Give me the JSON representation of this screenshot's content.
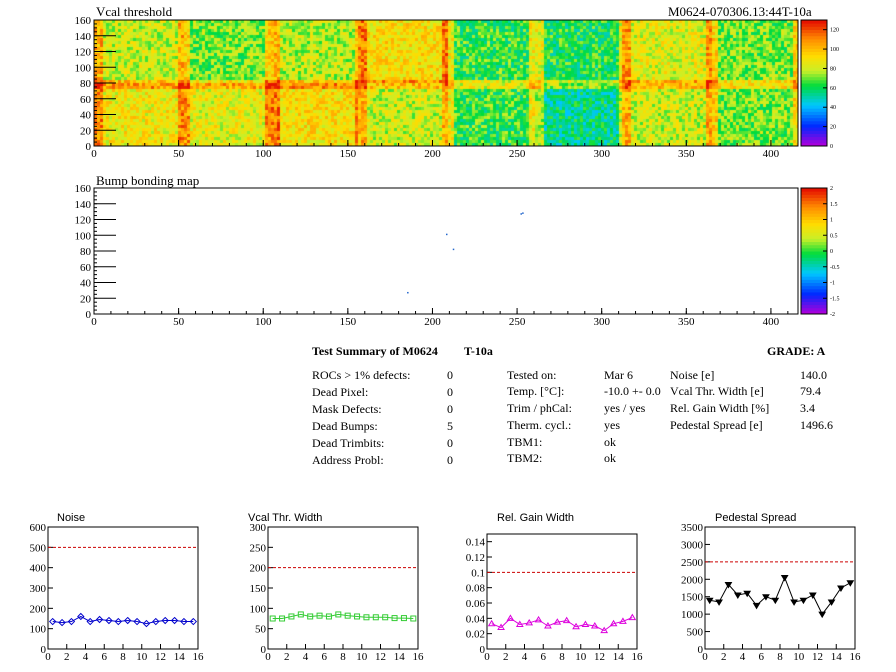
{
  "module_label": "M0624-070306.13:44T-10a",
  "maps": [
    {
      "title": "Vcal threshold",
      "x_ticks": [
        "0",
        "50",
        "100",
        "150",
        "200",
        "250",
        "300",
        "350",
        "400"
      ],
      "y_ticks": [
        "0",
        "20",
        "40",
        "60",
        "80",
        "100",
        "120",
        "140",
        "160"
      ],
      "x_max": 416,
      "y_max": 160,
      "palette_labels": [
        "0",
        "20",
        "40",
        "60",
        "80",
        "100",
        "120"
      ]
    },
    {
      "title": "Bump bonding map",
      "x_ticks": [
        "0",
        "50",
        "100",
        "150",
        "200",
        "250",
        "300",
        "350",
        "400"
      ],
      "y_ticks": [
        "0",
        "20",
        "40",
        "60",
        "80",
        "100",
        "120",
        "140",
        "160"
      ],
      "x_max": 416,
      "y_max": 160,
      "palette_labels": [
        "-2",
        "-1.5",
        "-1",
        "-0.5",
        "0",
        "0.5",
        "1",
        "1.5",
        "2"
      ],
      "defect_pixels": [
        [
          253,
          129
        ],
        [
          208,
          102
        ],
        [
          212,
          83
        ],
        [
          185,
          28
        ],
        [
          252,
          128
        ]
      ]
    }
  ],
  "summary": {
    "title": "Test Summary of M0624",
    "temp_code": "T-10a",
    "grade": "GRADE:  A",
    "defects": [
      {
        "label": "ROCs > 1% defects:",
        "value": "0"
      },
      {
        "label": "Dead Pixel:",
        "value": "0"
      },
      {
        "label": "Mask Defects:",
        "value": "0"
      },
      {
        "label": "Dead Bumps:",
        "value": "5"
      },
      {
        "label": "Dead Trimbits:",
        "value": "0"
      },
      {
        "label": "Address Probl:",
        "value": "0"
      }
    ],
    "conditions": [
      {
        "label": "Tested on:",
        "value": "Mar 6"
      },
      {
        "label": "Temp. [°C]:",
        "value": "-10.0 +- 0.0"
      },
      {
        "label": "Trim / phCal:",
        "value": "yes / yes"
      },
      {
        "label": "Therm. cycl.:",
        "value": "yes"
      },
      {
        "label": "TBM1:",
        "value": "ok"
      },
      {
        "label": "TBM2:",
        "value": "ok"
      }
    ],
    "results": [
      {
        "label": "Noise [e]",
        "value": "140.0"
      },
      {
        "label": "Vcal Thr. Width [e]",
        "value": "79.4"
      },
      {
        "label": "Rel. Gain Width [%]",
        "value": "3.4"
      },
      {
        "label": "Pedestal Spread [e]",
        "value": "1496.6"
      }
    ]
  },
  "chart_data": [
    {
      "type": "line",
      "title": "Noise",
      "color": "#0000cc",
      "marker": "diamond",
      "x": [
        0,
        1,
        2,
        3,
        4,
        5,
        6,
        7,
        8,
        9,
        10,
        11,
        12,
        13,
        14,
        15
      ],
      "values": [
        135,
        130,
        135,
        160,
        135,
        145,
        140,
        135,
        140,
        135,
        125,
        135,
        140,
        140,
        135,
        135
      ],
      "ylim": [
        0,
        600
      ],
      "xlim": [
        0,
        16
      ],
      "threshold": 500,
      "yticks": [
        "0",
        "100",
        "200",
        "300",
        "400",
        "500",
        "600"
      ],
      "xticks": [
        "0",
        "2",
        "4",
        "6",
        "8",
        "10",
        "12",
        "14",
        "16"
      ]
    },
    {
      "type": "line",
      "title": "Vcal Thr. Width",
      "color": "#33cc33",
      "marker": "square",
      "x": [
        0,
        1,
        2,
        3,
        4,
        5,
        6,
        7,
        8,
        9,
        10,
        11,
        12,
        13,
        14,
        15
      ],
      "values": [
        75,
        75,
        80,
        85,
        80,
        82,
        80,
        85,
        82,
        80,
        78,
        78,
        78,
        76,
        76,
        75
      ],
      "ylim": [
        0,
        300
      ],
      "xlim": [
        0,
        16
      ],
      "threshold": 200,
      "yticks": [
        "0",
        "50",
        "100",
        "150",
        "200",
        "250",
        "300"
      ],
      "xticks": [
        "0",
        "2",
        "4",
        "6",
        "8",
        "10",
        "12",
        "14",
        "16"
      ]
    },
    {
      "type": "line",
      "title": "Rel. Gain Width",
      "color": "#dd00dd",
      "marker": "triangle",
      "x": [
        0,
        1,
        2,
        3,
        4,
        5,
        6,
        7,
        8,
        9,
        10,
        11,
        12,
        13,
        14,
        15
      ],
      "values": [
        0.033,
        0.028,
        0.04,
        0.032,
        0.034,
        0.038,
        0.03,
        0.035,
        0.037,
        0.029,
        0.032,
        0.03,
        0.024,
        0.033,
        0.036,
        0.041
      ],
      "ylim": [
        0,
        0.15
      ],
      "xlim": [
        0,
        16
      ],
      "threshold": 0.1,
      "yticks": [
        "0",
        "0.02",
        "0.04",
        "0.06",
        "0.08",
        "0.1",
        "0.12",
        "0.14"
      ],
      "xticks": [
        "0",
        "2",
        "4",
        "6",
        "8",
        "10",
        "12",
        "14",
        "16"
      ]
    },
    {
      "type": "line",
      "title": "Pedestal Spread",
      "color": "#000000",
      "marker": "triangle-down",
      "x": [
        0,
        1,
        2,
        3,
        4,
        5,
        6,
        7,
        8,
        9,
        10,
        11,
        12,
        13,
        14,
        15
      ],
      "values": [
        1400,
        1350,
        1850,
        1550,
        1600,
        1250,
        1500,
        1400,
        2050,
        1350,
        1400,
        1550,
        1000,
        1350,
        1750,
        1900
      ],
      "ylim": [
        0,
        3500
      ],
      "xlim": [
        0,
        16
      ],
      "threshold": 2500,
      "yticks": [
        "0",
        "500",
        "1000",
        "1500",
        "2000",
        "2500",
        "3000",
        "3500"
      ],
      "xticks": [
        "0",
        "2",
        "4",
        "6",
        "8",
        "10",
        "12",
        "14",
        "16"
      ]
    }
  ]
}
